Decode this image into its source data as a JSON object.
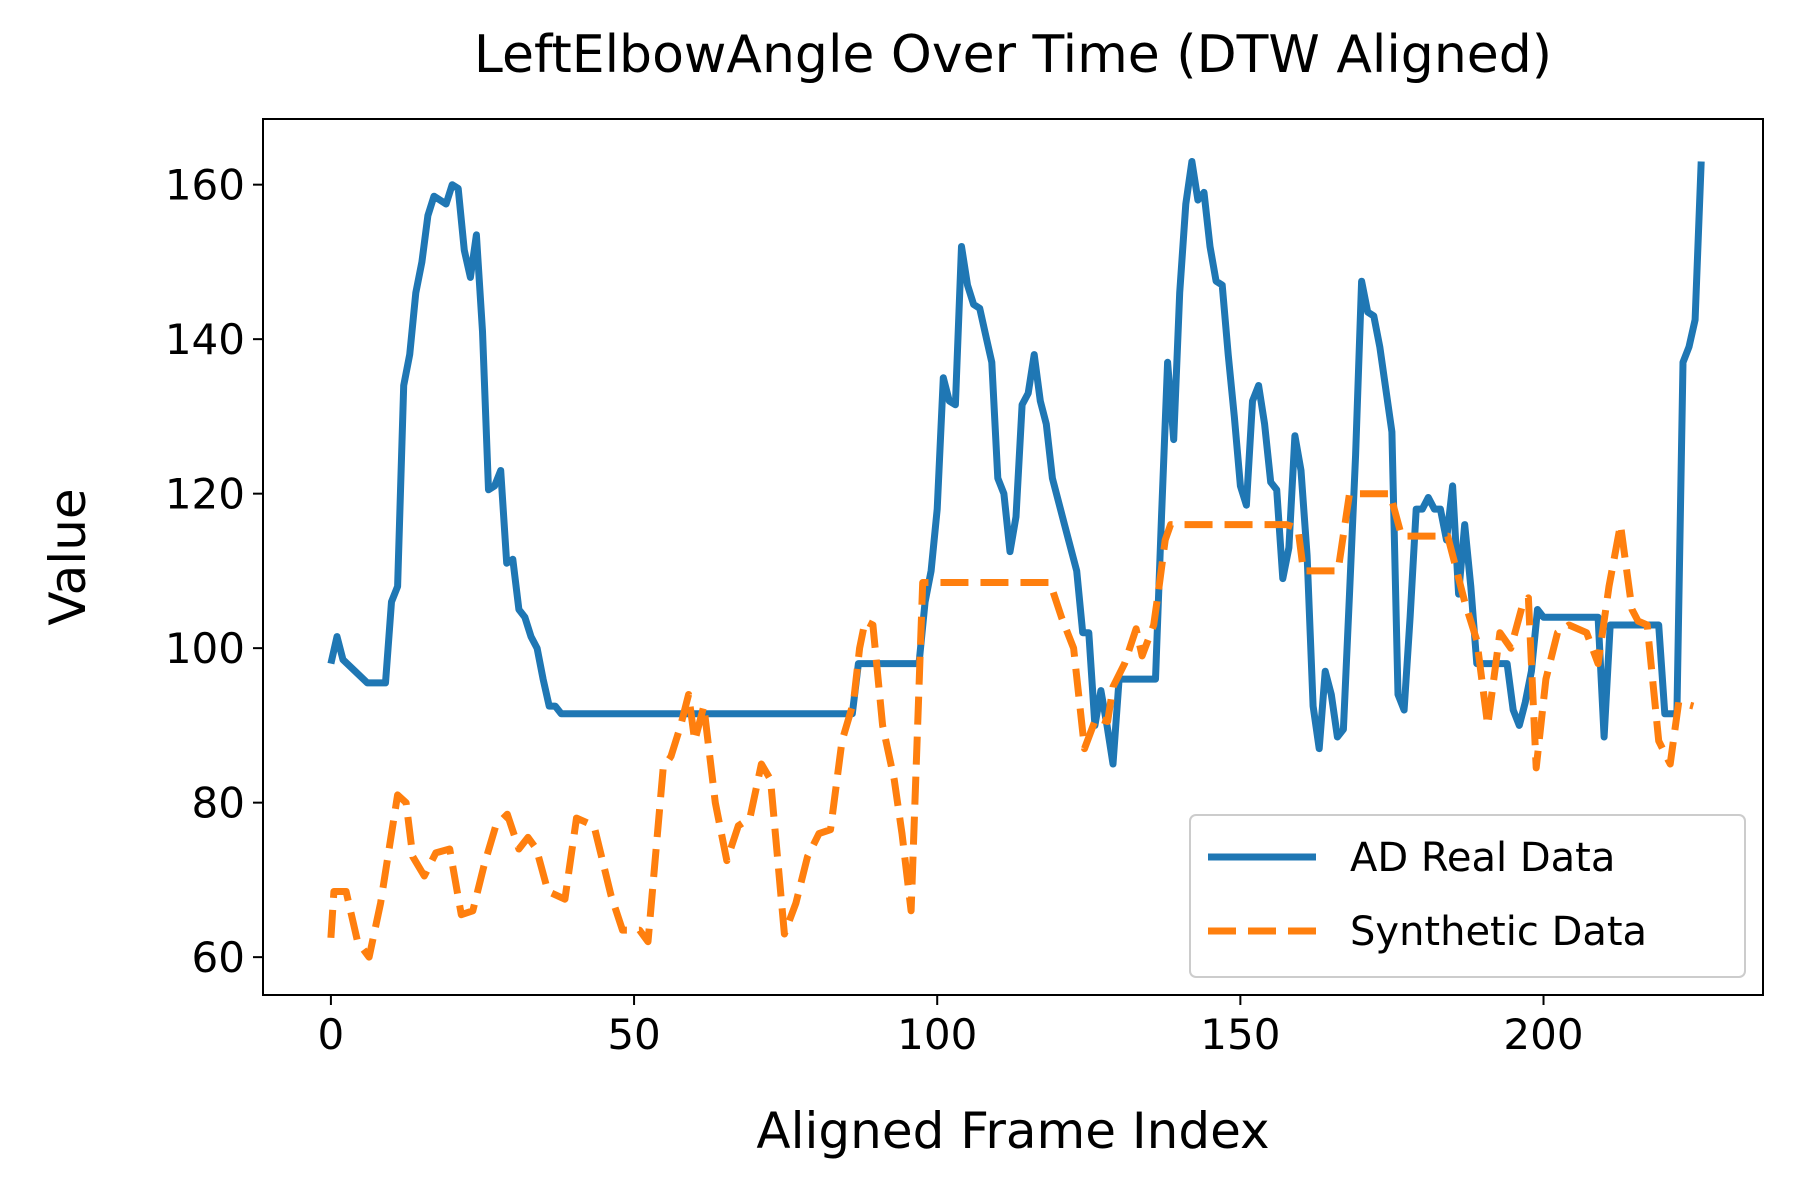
{
  "chart_data": {
    "type": "line",
    "title": "LeftElbowAngle Over Time (DTW Aligned)",
    "xlabel": "Aligned Frame Index",
    "ylabel": "Value",
    "xlim": [
      -11.2,
      236.2
    ],
    "ylim": [
      55.1,
      168.5
    ],
    "xticks": [
      0,
      50,
      100,
      150,
      200
    ],
    "yticks": [
      60,
      80,
      100,
      120,
      140,
      160
    ],
    "grid": false,
    "legend": "lower right",
    "series": [
      {
        "name": "AD Real Data",
        "color": "#1f77b4",
        "style": "solid",
        "x": [
          0,
          1,
          2,
          4,
          6,
          9,
          10,
          11,
          12,
          13,
          14,
          15,
          16,
          17,
          18,
          19,
          20,
          21,
          22,
          23,
          24,
          25,
          26,
          27,
          28,
          29,
          30,
          31,
          32,
          33,
          34,
          35,
          36,
          37,
          38,
          50,
          70,
          86,
          87,
          88,
          97,
          98,
          99,
          100,
          101,
          102,
          103,
          104,
          105,
          106,
          107,
          108,
          109,
          110,
          111,
          112,
          113,
          114,
          115,
          116,
          117,
          118,
          119,
          121,
          123,
          124,
          125,
          126,
          127,
          128,
          129,
          130,
          135,
          136,
          137,
          138,
          139,
          140,
          141,
          142,
          143,
          144,
          145,
          146,
          147,
          148,
          149,
          150,
          151,
          152,
          153,
          154,
          155,
          156,
          157,
          158,
          159,
          160,
          161,
          162,
          163,
          164,
          165,
          166,
          167,
          168,
          169,
          170,
          171,
          172,
          173,
          175,
          176,
          177,
          178,
          179,
          180,
          181,
          182,
          183,
          184,
          185,
          186,
          187,
          188,
          189,
          190,
          194,
          195,
          196,
          197,
          198,
          199,
          200,
          201,
          209,
          210,
          211,
          219,
          220,
          221,
          222,
          223,
          224,
          225,
          226
        ],
        "values": [
          98,
          101.5,
          98.5,
          97,
          95.5,
          95.5,
          106,
          108,
          134,
          138,
          146,
          150,
          156,
          158.5,
          158,
          157.5,
          160,
          159.5,
          151.5,
          148,
          153.5,
          141,
          120.5,
          121,
          123,
          111,
          111.5,
          105,
          104,
          101.5,
          100,
          96,
          92.5,
          92.5,
          91.5,
          91.5,
          91.5,
          91.5,
          98,
          98,
          98,
          106,
          110,
          118,
          135,
          132,
          131.5,
          152,
          147,
          144.5,
          144,
          140.5,
          137,
          122,
          120,
          112.5,
          117,
          131.5,
          133,
          138,
          132,
          129,
          122,
          116,
          110,
          102,
          102,
          90,
          94.5,
          90,
          85,
          96,
          96,
          96,
          117,
          137,
          127,
          146,
          157.5,
          163,
          158,
          159,
          152,
          147.5,
          147,
          138,
          130,
          121,
          118.5,
          132,
          134,
          129,
          121.5,
          120.5,
          109,
          113,
          127.5,
          123,
          112,
          92.5,
          87,
          97,
          94,
          88.5,
          89.5,
          107,
          125,
          147.5,
          143.5,
          143,
          139,
          128,
          94,
          92,
          104,
          118,
          118,
          119.5,
          118,
          118,
          114,
          121,
          107,
          116,
          108,
          98,
          98,
          98,
          92,
          90,
          93,
          97,
          105,
          104,
          104,
          104,
          88.5,
          103,
          103,
          91.5,
          91.5,
          91.5,
          137,
          139,
          142.5,
          163
        ]
      },
      {
        "name": "Synthetic Data",
        "color": "#ff7f0e",
        "style": "dashed",
        "x": [
          0,
          0.5,
          2.5,
          4.4,
          6.3,
          8.2,
          10,
          11,
          12.4,
          13.5,
          15.4,
          17.3,
          19.6,
          21.5,
          23.4,
          25.3,
          27.2,
          29.1,
          31,
          32.5,
          33.9,
          35.8,
          38.6,
          40.5,
          43.4,
          46.2,
          48.1,
          50.9,
          52.3,
          54.8,
          56.1,
          57.7,
          59,
          60,
          61.5,
          63.4,
          65.3,
          67.2,
          69.1,
          71,
          72.5,
          74.8,
          76.7,
          78.6,
          80.5,
          82.4,
          84.3,
          86.2,
          87.2,
          88.1,
          89.4,
          91,
          92.9,
          94.2,
          95.7,
          97.6,
          118.6,
          120.5,
          122.5,
          124.3,
          126.2,
          128.1,
          129,
          130.9,
          132.8,
          133.8,
          135.7,
          136.6,
          137.6,
          138.5,
          157.6,
          159.5,
          160.4,
          166.1,
          168,
          174.7,
          176.6,
          184.2,
          187,
          189,
          190.8,
          192.8,
          194.6,
          196.5,
          197.5,
          198.8,
          200.4,
          202.3,
          204.2,
          207.1,
          209,
          210.8,
          212.7,
          214.6,
          215.6,
          217.1,
          219,
          220.9,
          222.3,
          224.7
        ],
        "values": [
          62.5,
          68.5,
          68.5,
          62,
          60,
          67,
          76,
          81,
          80,
          73,
          70.5,
          73.5,
          74,
          65.5,
          66,
          72,
          77,
          78.5,
          74,
          75.5,
          74,
          68.5,
          67.5,
          78,
          77,
          68,
          63.5,
          63.5,
          62,
          84.5,
          86,
          90,
          94,
          88,
          92.5,
          80,
          72.5,
          77,
          78,
          85,
          83,
          63,
          67,
          73,
          76,
          76.5,
          88,
          93,
          100,
          103.5,
          103,
          90,
          83,
          76,
          66,
          108.5,
          108.5,
          104,
          100,
          87,
          91,
          90.5,
          95,
          98,
          102.5,
          99,
          103,
          108,
          114,
          116,
          116,
          115.5,
          110,
          110,
          120,
          120,
          114.5,
          114.5,
          106,
          101,
          90,
          102,
          100,
          105.5,
          106.5,
          84.5,
          96,
          102,
          103,
          102,
          98,
          108,
          116,
          105,
          103.5,
          103,
          88,
          85,
          93,
          92.5
        ]
      }
    ]
  }
}
